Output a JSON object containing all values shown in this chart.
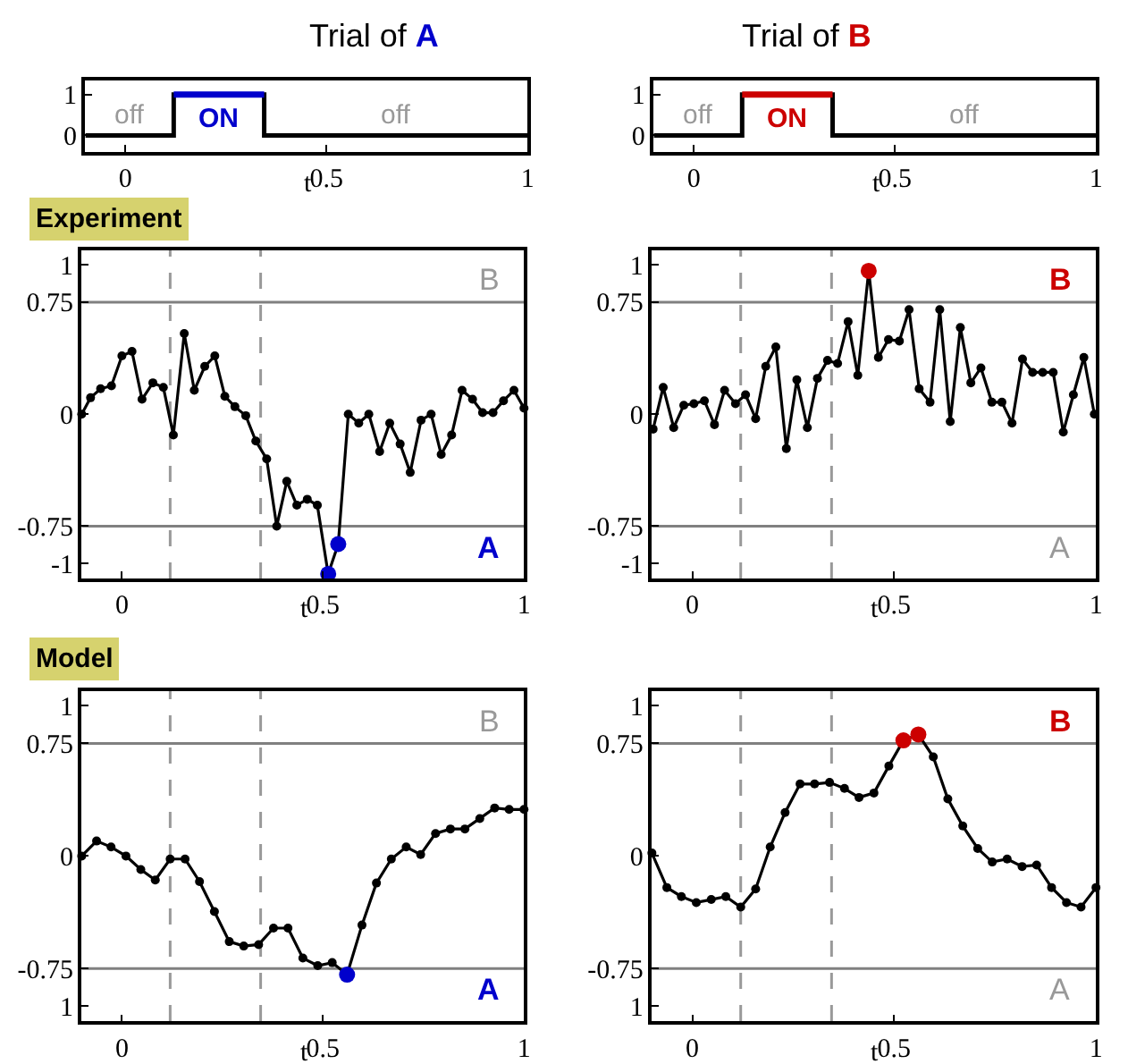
{
  "chart_data": [
    {
      "type": "step",
      "title": "Trial of A",
      "xlabel": "t",
      "xlim": [
        -0.1,
        1.0
      ],
      "xticks": [
        0,
        0.5,
        1
      ],
      "ylim": [
        -0.4,
        1.35
      ],
      "yticks": [
        0,
        1
      ],
      "grid": false,
      "series": [
        {
          "color": "#000000",
          "x": [
            -0.1,
            0.12,
            0.345,
            1.0
          ],
          "values": [
            0,
            1,
            0,
            0
          ]
        },
        {
          "type": "line",
          "color": "#0000cc",
          "x": [
            0.12,
            0.345
          ],
          "values": [
            1,
            1
          ]
        }
      ],
      "annotations": [
        "off",
        "ON",
        "off"
      ]
    },
    {
      "type": "step",
      "title": "Trial of B",
      "xlabel": "t",
      "xlim": [
        -0.1,
        1.0
      ],
      "xticks": [
        0,
        0.5,
        1
      ],
      "ylim": [
        -0.4,
        1.35
      ],
      "yticks": [
        0,
        1
      ],
      "grid": false,
      "series": [
        {
          "color": "#000000",
          "x": [
            -0.1,
            0.12,
            0.345,
            1.0
          ],
          "values": [
            0,
            1,
            0,
            0
          ]
        },
        {
          "type": "line",
          "color": "#cc0000",
          "x": [
            0.12,
            0.345
          ],
          "values": [
            1,
            1
          ]
        }
      ],
      "annotations": [
        "off",
        "ON",
        "off"
      ]
    },
    {
      "type": "line",
      "title": "Experiment",
      "xlabel": "t",
      "xlim": [
        -0.1,
        1.0
      ],
      "xticks": [
        0,
        0.5,
        1
      ],
      "ylim": [
        -1.1,
        1.1
      ],
      "yticks": [
        -1,
        -0.75,
        0,
        0.75,
        1
      ],
      "grid": false,
      "marker": "circle",
      "series": [
        {
          "color": "#000000",
          "x": [
            -0.1,
            -0.078,
            -0.053,
            -0.026,
            0.0,
            0.025,
            0.05,
            0.077,
            0.103,
            0.128,
            0.155,
            0.18,
            0.206,
            0.231,
            0.256,
            0.281,
            0.308,
            0.333,
            0.36,
            0.385,
            0.41,
            0.435,
            0.461,
            0.486,
            0.513,
            0.538,
            0.563,
            0.589,
            0.614,
            0.641,
            0.666,
            0.692,
            0.717,
            0.744,
            0.769,
            0.794,
            0.82,
            0.846,
            0.872,
            0.897,
            0.923,
            0.949,
            0.975,
            1.0
          ],
          "values": [
            0,
            0.11,
            0.17,
            0.19,
            0.39,
            0.42,
            0.1,
            0.21,
            0.18,
            -0.14,
            0.54,
            0.16,
            0.32,
            0.39,
            0.12,
            0.05,
            -0.01,
            -0.18,
            -0.3,
            -0.75,
            -0.45,
            -0.61,
            -0.57,
            -0.61,
            -1.07,
            -0.87,
            0,
            -0.06,
            0,
            -0.25,
            -0.06,
            -0.2,
            -0.39,
            -0.04,
            0,
            -0.27,
            -0.14,
            0.16,
            0.1,
            0.01,
            0.01,
            0.09,
            0.16,
            0.04
          ]
        },
        {
          "type": "scatter",
          "color": "#0000cc",
          "x": [
            0.513,
            0.538
          ],
          "values": [
            -1.07,
            -0.87
          ]
        }
      ],
      "ref_lines": [
        {
          "axis": "y",
          "value": 0.75,
          "color": "#808080"
        },
        {
          "axis": "y",
          "value": -0.75,
          "color": "#808080"
        },
        {
          "axis": "x",
          "value": 0.12,
          "color": "#999999",
          "line_style": "dashed"
        },
        {
          "axis": "x",
          "value": 0.345,
          "color": "#999999",
          "line_style": "dashed"
        }
      ],
      "annotations": [
        "B",
        "A"
      ]
    },
    {
      "type": "line",
      "xlabel": "t",
      "xlim": [
        -0.1,
        1.0
      ],
      "xticks": [
        0,
        0.5,
        1
      ],
      "ylim": [
        -1.1,
        1.1
      ],
      "yticks": [
        -1,
        -0.75,
        0,
        0.75,
        1
      ],
      "grid": false,
      "marker": "circle",
      "series": [
        {
          "color": "#000000",
          "x": [
            -0.097,
            -0.072,
            -0.046,
            -0.021,
            0.004,
            0.03,
            0.055,
            0.08,
            0.107,
            0.132,
            0.157,
            0.182,
            0.207,
            0.233,
            0.259,
            0.285,
            0.31,
            0.335,
            0.36,
            0.386,
            0.41,
            0.437,
            0.461,
            0.486,
            0.513,
            0.537,
            0.562,
            0.589,
            0.613,
            0.639,
            0.664,
            0.69,
            0.715,
            0.742,
            0.767,
            0.792,
            0.818,
            0.843,
            0.868,
            0.894,
            0.919,
            0.944,
            0.97,
            0.996
          ],
          "values": [
            -0.1,
            0.18,
            -0.09,
            0.06,
            0.07,
            0.09,
            -0.07,
            0.16,
            0.07,
            0.13,
            -0.03,
            0.32,
            0.45,
            -0.23,
            0.23,
            -0.09,
            0.24,
            0.36,
            0.34,
            0.62,
            0.26,
            0.96,
            0.38,
            0.5,
            0.49,
            0.7,
            0.17,
            0.08,
            0.7,
            -0.05,
            0.58,
            0.21,
            0.31,
            0.08,
            0.08,
            -0.06,
            0.37,
            0.28,
            0.28,
            0.28,
            -0.12,
            0.13,
            0.38,
            0
          ]
        },
        {
          "type": "scatter",
          "color": "#cc0000",
          "x": [
            0.437
          ],
          "values": [
            0.96
          ]
        }
      ],
      "ref_lines": [
        {
          "axis": "y",
          "value": 0.75,
          "color": "#808080"
        },
        {
          "axis": "y",
          "value": -0.75,
          "color": "#808080"
        },
        {
          "axis": "x",
          "value": 0.12,
          "color": "#999999",
          "line_style": "dashed"
        },
        {
          "axis": "x",
          "value": 0.345,
          "color": "#999999",
          "line_style": "dashed"
        }
      ],
      "annotations": [
        "B",
        "A"
      ]
    },
    {
      "type": "line",
      "title": "Model",
      "xlabel": "t",
      "xlim": [
        -0.1,
        1.0
      ],
      "xticks": [
        0,
        0.5,
        1
      ],
      "ylim": [
        -1.1,
        1.1
      ],
      "yticks": [
        {
          "value": -1,
          "label": "1"
        },
        -0.75,
        0,
        0.75,
        1
      ],
      "grid": false,
      "marker": "circle",
      "series": [
        {
          "color": "#000000",
          "x": [
            -0.1,
            -0.063,
            -0.027,
            0.01,
            0.047,
            0.083,
            0.12,
            0.157,
            0.193,
            0.23,
            0.267,
            0.303,
            0.34,
            0.377,
            0.413,
            0.45,
            0.487,
            0.523,
            0.56,
            0.597,
            0.633,
            0.67,
            0.707,
            0.743,
            0.78,
            0.817,
            0.853,
            0.89,
            0.927,
            0.963,
            1.0
          ],
          "values": [
            0,
            0.1,
            0.06,
            0,
            -0.09,
            -0.16,
            -0.02,
            -0.02,
            -0.17,
            -0.37,
            -0.57,
            -0.6,
            -0.59,
            -0.48,
            -0.48,
            -0.68,
            -0.73,
            -0.71,
            -0.79,
            -0.46,
            -0.18,
            -0.02,
            0.06,
            0.01,
            0.15,
            0.18,
            0.18,
            0.25,
            0.32,
            0.31,
            0.31
          ]
        },
        {
          "type": "scatter",
          "color": "#0000cc",
          "x": [
            0.56
          ],
          "values": [
            -0.79
          ]
        }
      ],
      "ref_lines": [
        {
          "axis": "y",
          "value": 0.75,
          "color": "#808080"
        },
        {
          "axis": "y",
          "value": -0.75,
          "color": "#808080"
        },
        {
          "axis": "x",
          "value": 0.12,
          "color": "#999999",
          "line_style": "dashed"
        },
        {
          "axis": "x",
          "value": 0.345,
          "color": "#999999",
          "line_style": "dashed"
        }
      ],
      "annotations": [
        "B",
        "A"
      ]
    },
    {
      "type": "line",
      "xlabel": "t",
      "xlim": [
        -0.1,
        1.0
      ],
      "xticks": [
        0,
        0.5,
        1
      ],
      "ylim": [
        -1.1,
        1.1
      ],
      "yticks": [
        {
          "value": -1,
          "label": "1"
        },
        -0.75,
        0,
        0.75,
        1
      ],
      "grid": false,
      "marker": "circle",
      "series": [
        {
          "color": "#000000",
          "x": [
            -0.1,
            -0.063,
            -0.027,
            0.01,
            0.047,
            0.083,
            0.12,
            0.157,
            0.193,
            0.23,
            0.267,
            0.303,
            0.34,
            0.377,
            0.413,
            0.45,
            0.487,
            0.523,
            0.56,
            0.597,
            0.633,
            0.67,
            0.707,
            0.743,
            0.78,
            0.817,
            0.853,
            0.89,
            0.927,
            0.963,
            1.0
          ],
          "values": [
            0.02,
            -0.21,
            -0.27,
            -0.31,
            -0.29,
            -0.27,
            -0.34,
            -0.22,
            0.06,
            0.29,
            0.48,
            0.48,
            0.49,
            0.45,
            0.39,
            0.42,
            0.6,
            0.77,
            0.81,
            0.66,
            0.38,
            0.2,
            0.05,
            -0.04,
            -0.02,
            -0.07,
            -0.06,
            -0.21,
            -0.31,
            -0.34,
            -0.21
          ]
        },
        {
          "type": "scatter",
          "color": "#cc0000",
          "x": [
            0.523,
            0.56
          ],
          "values": [
            0.77,
            0.81
          ]
        }
      ],
      "ref_lines": [
        {
          "axis": "y",
          "value": 0.75,
          "color": "#808080"
        },
        {
          "axis": "y",
          "value": -0.75,
          "color": "#808080"
        },
        {
          "axis": "x",
          "value": 0.12,
          "color": "#999999",
          "line_style": "dashed"
        },
        {
          "axis": "x",
          "value": 0.345,
          "color": "#999999",
          "line_style": "dashed"
        }
      ],
      "annotations": [
        "B",
        "A"
      ]
    }
  ]
}
